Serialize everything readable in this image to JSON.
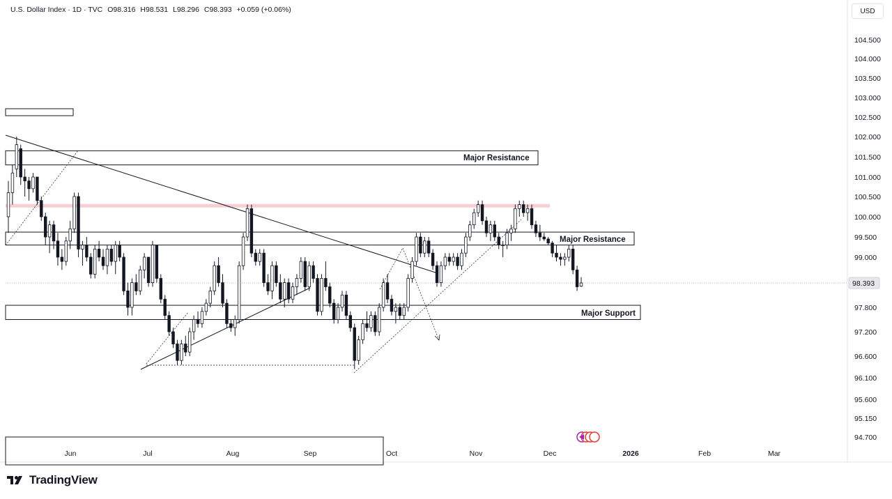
{
  "legend": {
    "symbol": "U.S. Dollar Index · 1D · TVC",
    "open": "O98.316",
    "high": "H98.531",
    "low": "L98.296",
    "close": "C98.393",
    "change": "+0.059 (+0.06%)"
  },
  "currency_button": "USD",
  "brand": "TradingView",
  "chart_data": {
    "type": "candlestick",
    "symbol": "U.S. Dollar Index",
    "interval": "1D",
    "source": "TVC",
    "last_price": "98.393",
    "y_ticks": [
      "104.500",
      "104.000",
      "103.500",
      "103.000",
      "102.500",
      "102.000",
      "101.500",
      "101.000",
      "100.500",
      "100.000",
      "99.500",
      "99.000",
      "98.393",
      "97.800",
      "97.200",
      "96.600",
      "96.100",
      "95.600",
      "95.150",
      "94.700"
    ],
    "x_ticks": [
      "Jun",
      "Jul",
      "Aug",
      "Sep",
      "Oct",
      "Nov",
      "Dec",
      "2026",
      "Feb",
      "Mar"
    ],
    "bold_x_ticks": [
      "2026"
    ],
    "annotations": [
      {
        "label": "Major Resistance",
        "zone": [
          101.3,
          101.65
        ]
      },
      {
        "label": "Major Resistance",
        "zone": [
          99.3,
          99.62
        ]
      },
      {
        "label": "Major Support",
        "zone": [
          97.5,
          97.85
        ]
      }
    ],
    "highlight_level": 100.28,
    "candles": [
      {
        "o": 100.0,
        "h": 100.9,
        "l": 99.6,
        "c": 100.6
      },
      {
        "o": 100.6,
        "h": 101.3,
        "l": 100.3,
        "c": 101.1
      },
      {
        "o": 101.2,
        "h": 102.0,
        "l": 101.0,
        "c": 101.8
      },
      {
        "o": 101.7,
        "h": 101.8,
        "l": 100.8,
        "c": 101.0
      },
      {
        "o": 101.0,
        "h": 101.2,
        "l": 100.5,
        "c": 100.9
      },
      {
        "o": 100.9,
        "h": 101.0,
        "l": 100.4,
        "c": 100.7
      },
      {
        "o": 100.7,
        "h": 101.1,
        "l": 100.6,
        "c": 101.0
      },
      {
        "o": 101.0,
        "h": 101.0,
        "l": 100.3,
        "c": 100.4
      },
      {
        "o": 100.4,
        "h": 100.5,
        "l": 99.9,
        "c": 100.0
      },
      {
        "o": 100.0,
        "h": 100.1,
        "l": 99.3,
        "c": 99.5
      },
      {
        "o": 99.5,
        "h": 99.9,
        "l": 99.1,
        "c": 99.8
      },
      {
        "o": 99.8,
        "h": 99.9,
        "l": 99.2,
        "c": 99.4
      },
      {
        "o": 99.4,
        "h": 99.6,
        "l": 98.8,
        "c": 99.0
      },
      {
        "o": 99.0,
        "h": 99.2,
        "l": 98.7,
        "c": 98.9
      },
      {
        "o": 98.9,
        "h": 99.5,
        "l": 98.8,
        "c": 99.4
      },
      {
        "o": 99.4,
        "h": 99.9,
        "l": 99.2,
        "c": 99.7
      },
      {
        "o": 99.7,
        "h": 100.6,
        "l": 99.6,
        "c": 100.5
      },
      {
        "o": 100.5,
        "h": 100.6,
        "l": 99.0,
        "c": 99.2
      },
      {
        "o": 99.2,
        "h": 99.4,
        "l": 98.8,
        "c": 99.3
      },
      {
        "o": 99.3,
        "h": 99.5,
        "l": 98.9,
        "c": 99.0
      },
      {
        "o": 99.0,
        "h": 99.1,
        "l": 98.5,
        "c": 98.6
      },
      {
        "o": 98.6,
        "h": 99.3,
        "l": 98.5,
        "c": 99.2
      },
      {
        "o": 99.2,
        "h": 99.4,
        "l": 98.9,
        "c": 99.0
      },
      {
        "o": 99.0,
        "h": 99.2,
        "l": 98.7,
        "c": 98.8
      },
      {
        "o": 98.8,
        "h": 99.3,
        "l": 98.6,
        "c": 99.2
      },
      {
        "o": 99.2,
        "h": 99.3,
        "l": 98.8,
        "c": 98.9
      },
      {
        "o": 98.9,
        "h": 99.4,
        "l": 98.6,
        "c": 99.3
      },
      {
        "o": 99.3,
        "h": 99.4,
        "l": 98.9,
        "c": 99.0
      },
      {
        "o": 99.0,
        "h": 99.1,
        "l": 98.1,
        "c": 98.2
      },
      {
        "o": 98.2,
        "h": 98.4,
        "l": 97.6,
        "c": 97.8
      },
      {
        "o": 97.8,
        "h": 98.5,
        "l": 97.6,
        "c": 98.4
      },
      {
        "o": 98.4,
        "h": 98.6,
        "l": 98.1,
        "c": 98.2
      },
      {
        "o": 98.2,
        "h": 98.8,
        "l": 98.1,
        "c": 98.7
      },
      {
        "o": 98.7,
        "h": 99.1,
        "l": 98.5,
        "c": 99.0
      },
      {
        "o": 99.0,
        "h": 99.0,
        "l": 98.3,
        "c": 98.4
      },
      {
        "o": 98.4,
        "h": 99.4,
        "l": 98.3,
        "c": 99.3
      },
      {
        "o": 99.3,
        "h": 99.3,
        "l": 98.4,
        "c": 98.5
      },
      {
        "o": 98.5,
        "h": 98.6,
        "l": 97.9,
        "c": 98.0
      },
      {
        "o": 98.0,
        "h": 98.1,
        "l": 97.5,
        "c": 97.6
      },
      {
        "o": 97.6,
        "h": 97.7,
        "l": 97.1,
        "c": 97.2
      },
      {
        "o": 97.2,
        "h": 97.3,
        "l": 96.8,
        "c": 96.9
      },
      {
        "o": 96.9,
        "h": 97.0,
        "l": 96.4,
        "c": 96.5
      },
      {
        "o": 96.5,
        "h": 97.0,
        "l": 96.4,
        "c": 96.9
      },
      {
        "o": 96.9,
        "h": 97.1,
        "l": 96.6,
        "c": 96.7
      },
      {
        "o": 96.7,
        "h": 97.3,
        "l": 96.6,
        "c": 97.2
      },
      {
        "o": 97.2,
        "h": 97.6,
        "l": 97.0,
        "c": 97.5
      },
      {
        "o": 97.5,
        "h": 97.7,
        "l": 97.3,
        "c": 97.4
      },
      {
        "o": 97.4,
        "h": 97.8,
        "l": 97.3,
        "c": 97.7
      },
      {
        "o": 97.7,
        "h": 98.0,
        "l": 97.6,
        "c": 97.9
      },
      {
        "o": 97.9,
        "h": 98.3,
        "l": 97.8,
        "c": 98.2
      },
      {
        "o": 98.2,
        "h": 98.9,
        "l": 98.1,
        "c": 98.8
      },
      {
        "o": 98.8,
        "h": 99.0,
        "l": 98.3,
        "c": 98.4
      },
      {
        "o": 98.4,
        "h": 98.6,
        "l": 97.8,
        "c": 97.9
      },
      {
        "o": 97.9,
        "h": 98.0,
        "l": 97.3,
        "c": 97.4
      },
      {
        "o": 97.4,
        "h": 97.5,
        "l": 97.2,
        "c": 97.3
      },
      {
        "o": 97.3,
        "h": 97.6,
        "l": 97.1,
        "c": 97.5
      },
      {
        "o": 97.5,
        "h": 98.9,
        "l": 97.4,
        "c": 98.8
      },
      {
        "o": 98.8,
        "h": 99.6,
        "l": 98.7,
        "c": 99.5
      },
      {
        "o": 99.5,
        "h": 100.3,
        "l": 99.4,
        "c": 100.2
      },
      {
        "o": 100.2,
        "h": 100.3,
        "l": 99.0,
        "c": 99.1
      },
      {
        "o": 99.1,
        "h": 99.2,
        "l": 98.8,
        "c": 98.9
      },
      {
        "o": 98.9,
        "h": 99.2,
        "l": 98.8,
        "c": 99.1
      },
      {
        "o": 99.1,
        "h": 99.2,
        "l": 98.3,
        "c": 98.4
      },
      {
        "o": 98.4,
        "h": 98.6,
        "l": 98.1,
        "c": 98.2
      },
      {
        "o": 98.2,
        "h": 98.9,
        "l": 98.0,
        "c": 98.8
      },
      {
        "o": 98.8,
        "h": 98.9,
        "l": 98.3,
        "c": 98.4
      },
      {
        "o": 98.4,
        "h": 98.6,
        "l": 97.9,
        "c": 98.0
      },
      {
        "o": 98.0,
        "h": 98.5,
        "l": 97.8,
        "c": 98.4
      },
      {
        "o": 98.4,
        "h": 98.5,
        "l": 97.9,
        "c": 98.0
      },
      {
        "o": 98.0,
        "h": 98.4,
        "l": 97.9,
        "c": 98.3
      },
      {
        "o": 98.3,
        "h": 98.6,
        "l": 98.1,
        "c": 98.5
      },
      {
        "o": 98.5,
        "h": 99.0,
        "l": 98.4,
        "c": 98.9
      },
      {
        "o": 98.9,
        "h": 99.0,
        "l": 98.2,
        "c": 98.3
      },
      {
        "o": 98.3,
        "h": 98.9,
        "l": 98.2,
        "c": 98.8
      },
      {
        "o": 98.8,
        "h": 98.9,
        "l": 98.4,
        "c": 98.5
      },
      {
        "o": 98.5,
        "h": 98.6,
        "l": 97.6,
        "c": 97.7
      },
      {
        "o": 97.7,
        "h": 98.6,
        "l": 97.6,
        "c": 98.5
      },
      {
        "o": 98.5,
        "h": 98.9,
        "l": 98.2,
        "c": 98.3
      },
      {
        "o": 98.3,
        "h": 98.4,
        "l": 97.8,
        "c": 97.9
      },
      {
        "o": 97.9,
        "h": 98.0,
        "l": 97.4,
        "c": 97.5
      },
      {
        "o": 97.5,
        "h": 97.9,
        "l": 97.4,
        "c": 97.8
      },
      {
        "o": 97.8,
        "h": 98.2,
        "l": 97.7,
        "c": 98.1
      },
      {
        "o": 98.1,
        "h": 98.2,
        "l": 97.5,
        "c": 97.6
      },
      {
        "o": 97.6,
        "h": 97.7,
        "l": 97.2,
        "c": 97.3
      },
      {
        "o": 97.3,
        "h": 97.4,
        "l": 96.3,
        "c": 96.5
      },
      {
        "o": 96.5,
        "h": 97.1,
        "l": 96.4,
        "c": 97.0
      },
      {
        "o": 97.0,
        "h": 97.5,
        "l": 96.9,
        "c": 97.4
      },
      {
        "o": 97.4,
        "h": 97.7,
        "l": 97.2,
        "c": 97.3
      },
      {
        "o": 97.3,
        "h": 97.7,
        "l": 97.2,
        "c": 97.6
      },
      {
        "o": 97.6,
        "h": 97.7,
        "l": 97.1,
        "c": 97.2
      },
      {
        "o": 97.2,
        "h": 97.9,
        "l": 97.1,
        "c": 97.8
      },
      {
        "o": 97.8,
        "h": 98.5,
        "l": 97.7,
        "c": 98.4
      },
      {
        "o": 98.4,
        "h": 98.6,
        "l": 97.9,
        "c": 98.0
      },
      {
        "o": 98.0,
        "h": 98.1,
        "l": 97.6,
        "c": 97.7
      },
      {
        "o": 97.7,
        "h": 97.9,
        "l": 97.4,
        "c": 97.8
      },
      {
        "o": 97.8,
        "h": 97.9,
        "l": 97.5,
        "c": 97.6
      },
      {
        "o": 97.6,
        "h": 97.9,
        "l": 97.5,
        "c": 97.8
      },
      {
        "o": 97.8,
        "h": 98.6,
        "l": 97.7,
        "c": 98.5
      },
      {
        "o": 98.5,
        "h": 99.0,
        "l": 98.4,
        "c": 98.9
      },
      {
        "o": 98.9,
        "h": 99.6,
        "l": 98.8,
        "c": 99.5
      },
      {
        "o": 99.5,
        "h": 99.6,
        "l": 99.0,
        "c": 99.1
      },
      {
        "o": 99.1,
        "h": 99.5,
        "l": 99.0,
        "c": 99.4
      },
      {
        "o": 99.4,
        "h": 99.5,
        "l": 99.0,
        "c": 99.1
      },
      {
        "o": 99.1,
        "h": 99.2,
        "l": 98.7,
        "c": 98.8
      },
      {
        "o": 98.8,
        "h": 98.9,
        "l": 98.3,
        "c": 98.4
      },
      {
        "o": 98.4,
        "h": 98.9,
        "l": 98.3,
        "c": 98.8
      },
      {
        "o": 98.8,
        "h": 99.1,
        "l": 98.7,
        "c": 99.0
      },
      {
        "o": 99.0,
        "h": 99.1,
        "l": 98.8,
        "c": 98.9
      },
      {
        "o": 98.9,
        "h": 99.1,
        "l": 98.8,
        "c": 99.0
      },
      {
        "o": 99.0,
        "h": 99.1,
        "l": 98.7,
        "c": 98.8
      },
      {
        "o": 98.8,
        "h": 99.2,
        "l": 98.7,
        "c": 99.1
      },
      {
        "o": 99.1,
        "h": 99.6,
        "l": 99.0,
        "c": 99.5
      },
      {
        "o": 99.5,
        "h": 99.9,
        "l": 99.4,
        "c": 99.8
      },
      {
        "o": 99.8,
        "h": 100.2,
        "l": 99.7,
        "c": 100.1
      },
      {
        "o": 100.1,
        "h": 100.4,
        "l": 100.0,
        "c": 100.3
      },
      {
        "o": 100.3,
        "h": 100.4,
        "l": 99.8,
        "c": 99.9
      },
      {
        "o": 99.9,
        "h": 100.0,
        "l": 99.5,
        "c": 99.6
      },
      {
        "o": 99.6,
        "h": 99.9,
        "l": 99.4,
        "c": 99.8
      },
      {
        "o": 99.8,
        "h": 99.9,
        "l": 99.4,
        "c": 99.5
      },
      {
        "o": 99.5,
        "h": 99.6,
        "l": 99.2,
        "c": 99.3
      },
      {
        "o": 99.3,
        "h": 99.4,
        "l": 99.0,
        "c": 99.3
      },
      {
        "o": 99.3,
        "h": 99.7,
        "l": 99.2,
        "c": 99.6
      },
      {
        "o": 99.6,
        "h": 99.8,
        "l": 99.4,
        "c": 99.7
      },
      {
        "o": 99.7,
        "h": 100.3,
        "l": 99.6,
        "c": 100.2
      },
      {
        "o": 100.2,
        "h": 100.4,
        "l": 100.0,
        "c": 100.3
      },
      {
        "o": 100.3,
        "h": 100.4,
        "l": 100.0,
        "c": 100.1
      },
      {
        "o": 100.1,
        "h": 100.3,
        "l": 99.9,
        "c": 100.2
      },
      {
        "o": 100.2,
        "h": 100.3,
        "l": 99.7,
        "c": 99.8
      },
      {
        "o": 99.8,
        "h": 99.9,
        "l": 99.5,
        "c": 99.6
      },
      {
        "o": 99.6,
        "h": 99.8,
        "l": 99.4,
        "c": 99.5
      },
      {
        "o": 99.5,
        "h": 99.6,
        "l": 99.4,
        "c": 99.45
      },
      {
        "o": 99.45,
        "h": 99.5,
        "l": 99.3,
        "c": 99.35
      },
      {
        "o": 99.35,
        "h": 99.4,
        "l": 99.0,
        "c": 99.1
      },
      {
        "o": 99.1,
        "h": 99.3,
        "l": 98.9,
        "c": 99.0
      },
      {
        "o": 99.0,
        "h": 99.1,
        "l": 98.8,
        "c": 98.95
      },
      {
        "o": 98.95,
        "h": 99.1,
        "l": 98.8,
        "c": 99.0
      },
      {
        "o": 99.0,
        "h": 99.3,
        "l": 98.9,
        "c": 99.2
      },
      {
        "o": 99.2,
        "h": 99.3,
        "l": 98.6,
        "c": 98.7
      },
      {
        "o": 98.7,
        "h": 98.8,
        "l": 98.2,
        "c": 98.3
      },
      {
        "o": 98.316,
        "h": 98.531,
        "l": 98.296,
        "c": 98.393
      }
    ]
  }
}
